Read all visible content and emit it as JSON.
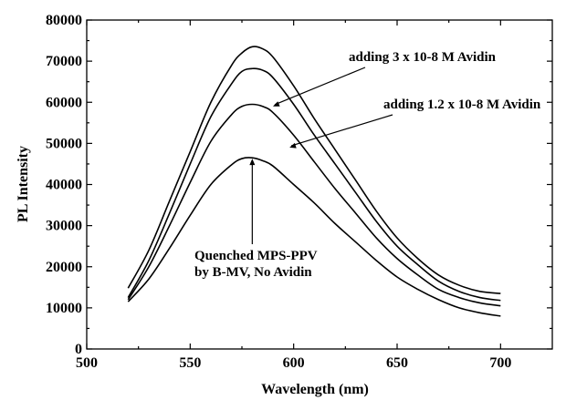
{
  "chart_data": {
    "type": "line",
    "xlabel": "Wavelength (nm)",
    "ylabel": "PL Intensity",
    "xlim": [
      500,
      725
    ],
    "ylim": [
      0,
      80000
    ],
    "xticks": [
      500,
      550,
      600,
      650,
      700
    ],
    "yticks": [
      0,
      10000,
      20000,
      30000,
      40000,
      50000,
      60000,
      70000,
      80000
    ],
    "grid": false,
    "series": [
      {
        "x": [
          520,
          530,
          540,
          550,
          560,
          570,
          575,
          580,
          585,
          590,
          600,
          610,
          620,
          630,
          640,
          650,
          660,
          670,
          680,
          690,
          700
        ],
        "values": [
          14800,
          24000,
          36000,
          48000,
          60000,
          69000,
          72000,
          73500,
          73000,
          71000,
          64000,
          56000,
          48500,
          41000,
          33500,
          27000,
          22000,
          18000,
          15500,
          14000,
          13500
        ]
      },
      {
        "x": [
          520,
          530,
          540,
          550,
          560,
          570,
          575,
          580,
          585,
          590,
          600,
          610,
          620,
          630,
          640,
          650,
          660,
          670,
          680,
          690,
          700
        ],
        "values": [
          12500,
          21500,
          33000,
          45000,
          56500,
          64500,
          67500,
          68200,
          67800,
          66000,
          59500,
          52000,
          45000,
          38000,
          31000,
          25000,
          20500,
          16500,
          14000,
          12500,
          11800
        ]
      },
      {
        "x": [
          520,
          530,
          540,
          550,
          560,
          570,
          575,
          580,
          585,
          590,
          600,
          610,
          620,
          630,
          640,
          650,
          660,
          670,
          680,
          690,
          700
        ],
        "values": [
          12000,
          20000,
          30000,
          40500,
          50500,
          57000,
          59000,
          59500,
          59000,
          57500,
          52000,
          45500,
          39000,
          33000,
          27000,
          22000,
          18000,
          14500,
          12500,
          11200,
          10500
        ]
      },
      {
        "x": [
          520,
          530,
          540,
          550,
          560,
          570,
          575,
          580,
          585,
          590,
          600,
          610,
          620,
          630,
          640,
          650,
          660,
          670,
          680,
          690,
          700
        ],
        "values": [
          11500,
          17000,
          24500,
          32500,
          40000,
          44800,
          46300,
          46500,
          45800,
          44500,
          40000,
          35500,
          30500,
          26000,
          21500,
          17500,
          14500,
          12000,
          10000,
          8800,
          8000
        ]
      }
    ],
    "annotations": [
      {
        "text": "adding 3 x 10-8 M Avidin",
        "target_x": 590,
        "target_y": 59000,
        "align": "right"
      },
      {
        "text": "adding 1.2 x 10-8 M Avidin",
        "target_x": 598,
        "target_y": 49000,
        "align": "right"
      },
      {
        "line1": "Quenched MPS-PPV",
        "line2": "by B-MV, No Avidin",
        "target_x": 580,
        "target_y": 46500,
        "align": "below"
      }
    ]
  }
}
